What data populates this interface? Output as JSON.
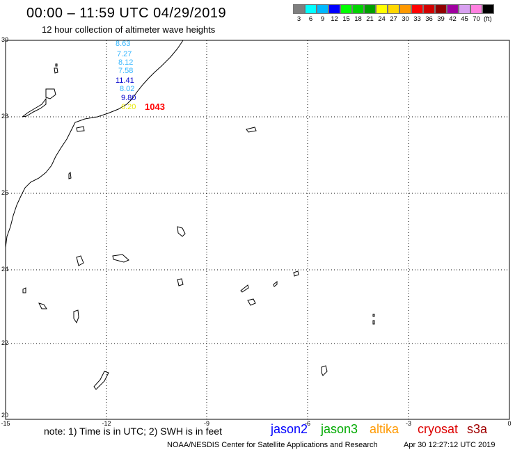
{
  "header": {
    "title": "00:00 – 11:59 UTC 04/29/2019",
    "subtitle": "12 hour collection of altimeter wave heights"
  },
  "color_scale": {
    "swatches": [
      "#7f7f7f",
      "#00ffff",
      "#00b8ff",
      "#0000ff",
      "#00ff00",
      "#00d200",
      "#00a000",
      "#ffff00",
      "#ffd700",
      "#ff9900",
      "#ff0000",
      "#d00000",
      "#900000",
      "#a000a0",
      "#d8a0f0",
      "#ff80e0",
      "#000000"
    ],
    "labels": [
      "3",
      "6",
      "9",
      "12",
      "15",
      "18",
      "21",
      "24",
      "27",
      "30",
      "33",
      "36",
      "39",
      "42",
      "45",
      "70",
      "(ft)"
    ]
  },
  "axes": {
    "lat_labels": [
      "30",
      "28",
      "26",
      "24",
      "22",
      "20"
    ],
    "lon_labels": [
      "-15",
      "-12",
      "-9",
      "-6",
      "-3",
      "0"
    ]
  },
  "observations": [
    {
      "value": "8.63",
      "color": "#33b5ff"
    },
    {
      "value": "7.27",
      "color": "#33b5ff"
    },
    {
      "value": "8.12",
      "color": "#33b5ff"
    },
    {
      "value": "7.58",
      "color": "#33b5ff"
    },
    {
      "value": "11.41",
      "color": "#0000cc"
    },
    {
      "value": "8.02",
      "color": "#33b5ff"
    },
    {
      "value": "9.80",
      "color": "#0000cc"
    },
    {
      "value": "6.20",
      "color": "#e8e800"
    }
  ],
  "buoy_label": "1043",
  "footer": {
    "note": "note:  1) Time is in UTC;  2) SWH is in feet",
    "satellites": [
      {
        "name": "jason2",
        "color": "#0000ff"
      },
      {
        "name": "jason3",
        "color": "#00aa00"
      },
      {
        "name": "altika",
        "color": "#ff9900"
      },
      {
        "name": "cryosat",
        "color": "#dd0000"
      },
      {
        "name": "s3a",
        "color": "#a00000"
      }
    ],
    "credit": "NOAA/NESDIS Center for Satellite Applications and Research",
    "timestamp": "Apr 30 12:27:12 UTC 2019"
  }
}
